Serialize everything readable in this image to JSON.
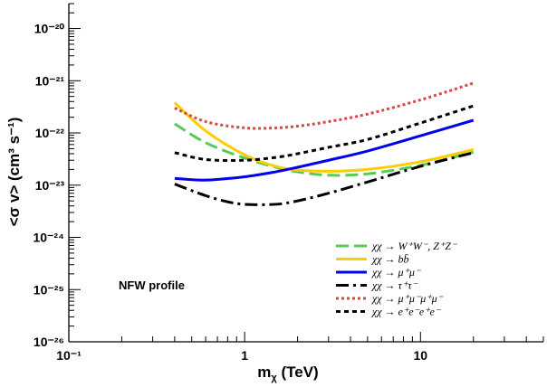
{
  "chart_data": {
    "type": "line",
    "title": "",
    "xlabel": "m",
    "xlabel_sub": "χ",
    "xlabel_unit": " (TeV)",
    "ylabel": "<σ v> (cm³ s⁻¹)",
    "x_scale": "log",
    "y_scale": "log",
    "xlim": [
      0.1,
      50
    ],
    "ylim": [
      1e-26,
      3e-20
    ],
    "x_ticks": [
      {
        "value": 0.1,
        "label": "10⁻¹"
      },
      {
        "value": 1,
        "label": "1"
      },
      {
        "value": 10,
        "label": "10"
      }
    ],
    "y_ticks": [
      {
        "value": 1e-26,
        "label": "10⁻²⁶"
      },
      {
        "value": 1e-25,
        "label": "10⁻²⁵"
      },
      {
        "value": 1e-24,
        "label": "10⁻²⁴"
      },
      {
        "value": 1e-23,
        "label": "10⁻²³"
      },
      {
        "value": 1e-22,
        "label": "10⁻²²"
      },
      {
        "value": 1e-21,
        "label": "10⁻²¹"
      },
      {
        "value": 1e-20,
        "label": "10⁻²⁰"
      }
    ],
    "grid": false,
    "legend_position": "bottom-right",
    "annotation": "NFW profile",
    "series": [
      {
        "name": "χχ → W⁺W⁻, Z⁺Z⁻",
        "color": "#55cc55",
        "dash": "longdash",
        "x": [
          0.4,
          0.6,
          1.0,
          1.5,
          2.0,
          3.0,
          5.0,
          10.0,
          20.0
        ],
        "y": [
          1.5e-22,
          6.5e-23,
          3.3e-23,
          2.2e-23,
          1.8e-23,
          1.55e-23,
          1.65e-23,
          2.4e-23,
          4.3e-23
        ]
      },
      {
        "name": "χχ → bb̄",
        "color": "#ffcc00",
        "dash": "solid",
        "x": [
          0.4,
          0.6,
          1.0,
          1.5,
          2.0,
          3.0,
          5.0,
          10.0,
          20.0
        ],
        "y": [
          3.8e-22,
          1.1e-22,
          3.8e-23,
          2.3e-23,
          1.95e-23,
          1.85e-23,
          2e-23,
          2.8e-23,
          4.8e-23
        ]
      },
      {
        "name": "χχ → μ⁺μ⁻",
        "color": "#0000ee",
        "dash": "solid",
        "x": [
          0.4,
          0.6,
          1.0,
          1.5,
          2.0,
          3.0,
          5.0,
          10.0,
          20.0
        ],
        "y": [
          1.35e-23,
          1.25e-23,
          1.45e-23,
          1.8e-23,
          2.2e-23,
          3e-23,
          4.5e-23,
          8.8e-23,
          1.75e-22
        ]
      },
      {
        "name": "χχ → τ⁺τ⁻",
        "color": "#000000",
        "dash": "dashdot",
        "x": [
          0.4,
          0.6,
          0.8,
          1.0,
          1.5,
          2.0,
          3.0,
          5.0,
          10.0,
          20.0
        ],
        "y": [
          1.05e-23,
          6.3e-24,
          4.8e-24,
          4.3e-24,
          4.3e-24,
          5e-24,
          7e-24,
          1.15e-23,
          2.3e-23,
          4.2e-23
        ]
      },
      {
        "name": "χχ → μ⁺μ⁻μ⁺μ⁻",
        "color": "#dd4444",
        "dash": "dotted",
        "x": [
          0.4,
          0.6,
          1.0,
          1.5,
          2.0,
          3.0,
          5.0,
          10.0,
          20.0
        ],
        "y": [
          3e-22,
          1.65e-22,
          1.25e-22,
          1.25e-22,
          1.35e-22,
          1.65e-22,
          2.3e-22,
          4.3e-22,
          9e-22
        ]
      },
      {
        "name": "χχ → e⁺e⁻e⁺e⁻",
        "color": "#000000",
        "dash": "shortdash",
        "x": [
          0.4,
          0.6,
          1.0,
          1.5,
          2.0,
          3.0,
          5.0,
          10.0,
          20.0
        ],
        "y": [
          4.2e-23,
          3.1e-23,
          3e-23,
          3.4e-23,
          4e-23,
          5.3e-23,
          7.5e-23,
          1.55e-22,
          3.3e-22
        ]
      }
    ]
  }
}
